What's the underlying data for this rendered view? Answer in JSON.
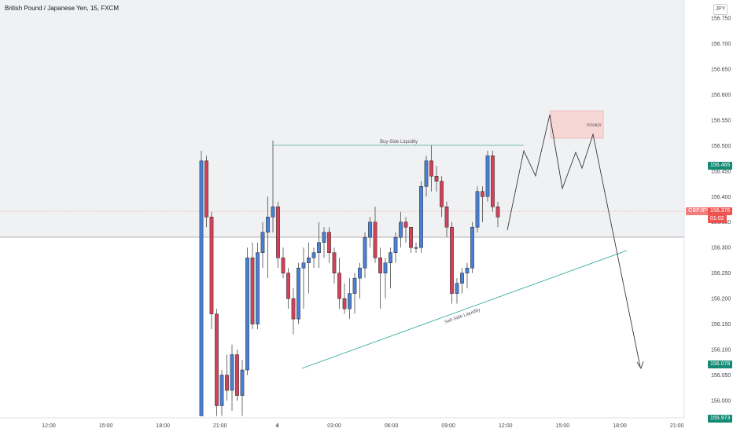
{
  "header": {
    "title": "British Pound / Japanese Yen, 15, FXCM",
    "currency_button": "JPY"
  },
  "price_axis": {
    "ticks": [
      "156.750",
      "156.700",
      "156.650",
      "156.600",
      "156.550",
      "156.500",
      "156.450",
      "156.400",
      "156.350",
      "156.300",
      "156.250",
      "156.200",
      "156.150",
      "156.100",
      "156.050",
      "156.000"
    ]
  },
  "time_axis": {
    "ticks": [
      "12:00",
      "15:00",
      "18:00",
      "21:00",
      "4",
      "03:00",
      "06:00",
      "09:00",
      "12:00",
      "15:00",
      "18:00",
      "21:00"
    ]
  },
  "price_tags": {
    "upper_level": "156.465",
    "current_symbol": "GBPJPY",
    "current_price": "156.376",
    "countdown": "01:02",
    "lower_level": "156.078",
    "bottom_partial": "155.973"
  },
  "annotations": {
    "buy_side": "Buy-Side Liquidity",
    "sell_side": "Sell-Side Liquidity",
    "poi": "POI/ADI"
  },
  "colors": {
    "up": "#4a80d4",
    "down": "#d2435a",
    "buy_line": "#4caf8a",
    "sell_line": "#26a69a",
    "zone": "#f0f1f3",
    "poi_zone": "#f7d6d6",
    "current_line": "#f27b7b"
  },
  "chart_data": {
    "type": "candlestick",
    "symbol": "GBPJPY",
    "timeframe": "15",
    "ylim": [
      155.97,
      156.78
    ],
    "candles": [
      {
        "o": 155.97,
        "h": 156.49,
        "l": 155.97,
        "c": 156.47
      },
      {
        "o": 156.47,
        "h": 156.48,
        "l": 156.34,
        "c": 156.36
      },
      {
        "o": 156.36,
        "h": 156.37,
        "l": 156.14,
        "c": 156.17
      },
      {
        "o": 156.17,
        "h": 156.18,
        "l": 155.97,
        "c": 155.99
      },
      {
        "o": 155.99,
        "h": 156.06,
        "l": 155.97,
        "c": 156.05
      },
      {
        "o": 156.05,
        "h": 156.09,
        "l": 156.0,
        "c": 156.02
      },
      {
        "o": 156.02,
        "h": 156.11,
        "l": 155.98,
        "c": 156.09
      },
      {
        "o": 156.09,
        "h": 156.1,
        "l": 156.0,
        "c": 156.01
      },
      {
        "o": 156.01,
        "h": 156.08,
        "l": 155.97,
        "c": 156.06
      },
      {
        "o": 156.06,
        "h": 156.3,
        "l": 156.05,
        "c": 156.28
      },
      {
        "o": 156.28,
        "h": 156.31,
        "l": 156.14,
        "c": 156.15
      },
      {
        "o": 156.15,
        "h": 156.31,
        "l": 156.14,
        "c": 156.29
      },
      {
        "o": 156.29,
        "h": 156.35,
        "l": 156.26,
        "c": 156.33
      },
      {
        "o": 156.33,
        "h": 156.4,
        "l": 156.24,
        "c": 156.36
      },
      {
        "o": 156.36,
        "h": 156.51,
        "l": 156.33,
        "c": 156.38
      },
      {
        "o": 156.38,
        "h": 156.39,
        "l": 156.26,
        "c": 156.28
      },
      {
        "o": 156.28,
        "h": 156.3,
        "l": 156.24,
        "c": 156.25
      },
      {
        "o": 156.25,
        "h": 156.26,
        "l": 156.18,
        "c": 156.2
      },
      {
        "o": 156.2,
        "h": 156.22,
        "l": 156.13,
        "c": 156.16
      },
      {
        "o": 156.16,
        "h": 156.27,
        "l": 156.15,
        "c": 156.26
      },
      {
        "o": 156.26,
        "h": 156.3,
        "l": 156.18,
        "c": 156.27
      },
      {
        "o": 156.27,
        "h": 156.31,
        "l": 156.21,
        "c": 156.28
      },
      {
        "o": 156.28,
        "h": 156.3,
        "l": 156.26,
        "c": 156.29
      },
      {
        "o": 156.29,
        "h": 156.35,
        "l": 156.26,
        "c": 156.31
      },
      {
        "o": 156.31,
        "h": 156.34,
        "l": 156.28,
        "c": 156.33
      },
      {
        "o": 156.33,
        "h": 156.34,
        "l": 156.27,
        "c": 156.29
      },
      {
        "o": 156.29,
        "h": 156.3,
        "l": 156.23,
        "c": 156.25
      },
      {
        "o": 156.25,
        "h": 156.28,
        "l": 156.18,
        "c": 156.2
      },
      {
        "o": 156.2,
        "h": 156.23,
        "l": 156.17,
        "c": 156.18
      },
      {
        "o": 156.18,
        "h": 156.24,
        "l": 156.16,
        "c": 156.21
      },
      {
        "o": 156.21,
        "h": 156.25,
        "l": 156.17,
        "c": 156.24
      },
      {
        "o": 156.24,
        "h": 156.27,
        "l": 156.2,
        "c": 156.26
      },
      {
        "o": 156.26,
        "h": 156.33,
        "l": 156.24,
        "c": 156.32
      },
      {
        "o": 156.32,
        "h": 156.36,
        "l": 156.3,
        "c": 156.35
      },
      {
        "o": 156.35,
        "h": 156.38,
        "l": 156.27,
        "c": 156.28
      },
      {
        "o": 156.28,
        "h": 156.3,
        "l": 156.18,
        "c": 156.25
      },
      {
        "o": 156.25,
        "h": 156.28,
        "l": 156.2,
        "c": 156.27
      },
      {
        "o": 156.27,
        "h": 156.3,
        "l": 156.22,
        "c": 156.29
      },
      {
        "o": 156.29,
        "h": 156.33,
        "l": 156.27,
        "c": 156.32
      },
      {
        "o": 156.32,
        "h": 156.37,
        "l": 156.3,
        "c": 156.35
      },
      {
        "o": 156.35,
        "h": 156.36,
        "l": 156.31,
        "c": 156.34
      },
      {
        "o": 156.34,
        "h": 156.34,
        "l": 156.29,
        "c": 156.3
      },
      {
        "o": 156.3,
        "h": 156.31,
        "l": 156.29,
        "c": 156.3
      },
      {
        "o": 156.3,
        "h": 156.43,
        "l": 156.29,
        "c": 156.42
      },
      {
        "o": 156.42,
        "h": 156.48,
        "l": 156.4,
        "c": 156.47
      },
      {
        "o": 156.47,
        "h": 156.5,
        "l": 156.41,
        "c": 156.44
      },
      {
        "o": 156.44,
        "h": 156.46,
        "l": 156.41,
        "c": 156.43
      },
      {
        "o": 156.43,
        "h": 156.44,
        "l": 156.36,
        "c": 156.38
      },
      {
        "o": 156.38,
        "h": 156.39,
        "l": 156.32,
        "c": 156.34
      },
      {
        "o": 156.34,
        "h": 156.35,
        "l": 156.19,
        "c": 156.21
      },
      {
        "o": 156.21,
        "h": 156.24,
        "l": 156.19,
        "c": 156.23
      },
      {
        "o": 156.23,
        "h": 156.26,
        "l": 156.21,
        "c": 156.25
      },
      {
        "o": 156.25,
        "h": 156.27,
        "l": 156.22,
        "c": 156.26
      },
      {
        "o": 156.26,
        "h": 156.35,
        "l": 156.25,
        "c": 156.34
      },
      {
        "o": 156.34,
        "h": 156.42,
        "l": 156.33,
        "c": 156.41
      },
      {
        "o": 156.41,
        "h": 156.42,
        "l": 156.35,
        "c": 156.4
      },
      {
        "o": 156.4,
        "h": 156.49,
        "l": 156.39,
        "c": 156.48
      },
      {
        "o": 156.48,
        "h": 156.49,
        "l": 156.37,
        "c": 156.38
      },
      {
        "o": 156.38,
        "h": 156.39,
        "l": 156.34,
        "c": 156.36
      }
    ],
    "projection": [
      156.35,
      156.51,
      156.45,
      156.57,
      156.42,
      156.49,
      156.46,
      156.52,
      156.08
    ],
    "levels": {
      "buy_side_liquidity": 156.51,
      "current": 156.376,
      "zone_bottom": 156.33,
      "poi_zone": [
        156.52,
        156.58
      ]
    },
    "sell_side_trendline": [
      156.08,
      156.3
    ]
  }
}
